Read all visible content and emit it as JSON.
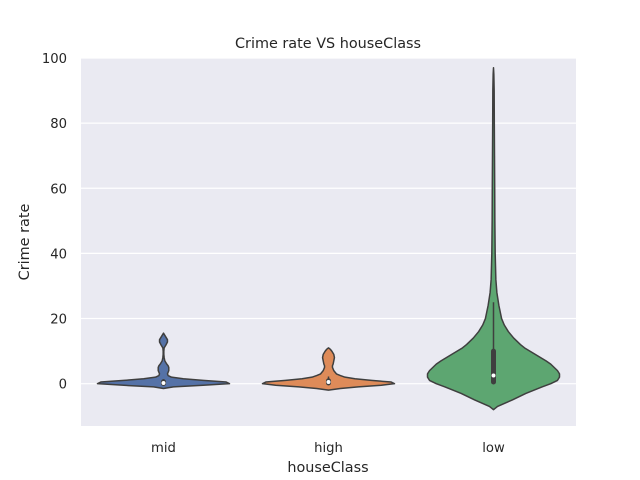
{
  "chart_data": {
    "type": "violin",
    "title": "Crime rate VS houseClass",
    "xlabel": "houseClass",
    "ylabel": "Crime rate",
    "ylim": [
      -13,
      100
    ],
    "yticks": [
      0,
      20,
      40,
      60,
      80,
      100
    ],
    "grid": true,
    "categories": [
      "mid",
      "high",
      "low"
    ],
    "series": [
      {
        "category": "mid",
        "color": "#5572a7",
        "range": [
          -1.5,
          15.5
        ],
        "iqr": [
          0.05,
          0.6
        ],
        "median": 0.2,
        "whiskers": [
          0,
          1.4
        ],
        "profile": [
          [
            -1.5,
            0
          ],
          [
            -1.0,
            0.15
          ],
          [
            -0.5,
            0.6
          ],
          [
            0,
            1.0
          ],
          [
            0.5,
            0.95
          ],
          [
            1.0,
            0.6
          ],
          [
            1.5,
            0.3
          ],
          [
            2.0,
            0.12
          ],
          [
            2.5,
            0.07
          ],
          [
            3.0,
            0.06
          ],
          [
            3.5,
            0.07
          ],
          [
            4.0,
            0.08
          ],
          [
            4.5,
            0.08
          ],
          [
            5.0,
            0.08
          ],
          [
            5.5,
            0.07
          ],
          [
            6.0,
            0.05
          ],
          [
            7.0,
            0.02
          ],
          [
            8.0,
            0.01
          ],
          [
            9.0,
            0.005
          ],
          [
            10.0,
            0.005
          ],
          [
            11.0,
            0.01
          ],
          [
            12.0,
            0.04
          ],
          [
            12.8,
            0.06
          ],
          [
            13.5,
            0.06
          ],
          [
            14.5,
            0.03
          ],
          [
            15.5,
            0
          ]
        ]
      },
      {
        "category": "high",
        "color": "#de8b59",
        "range": [
          -2,
          11
        ],
        "iqr": [
          0.2,
          0.9
        ],
        "median": 0.5,
        "whiskers": [
          0,
          2.2
        ],
        "profile": [
          [
            -2.0,
            0
          ],
          [
            -1.5,
            0.18
          ],
          [
            -1.0,
            0.45
          ],
          [
            -0.5,
            0.8
          ],
          [
            0,
            1.0
          ],
          [
            0.5,
            0.95
          ],
          [
            1.0,
            0.65
          ],
          [
            1.5,
            0.4
          ],
          [
            2.0,
            0.25
          ],
          [
            2.5,
            0.18
          ],
          [
            3.0,
            0.12
          ],
          [
            4.0,
            0.08
          ],
          [
            5.0,
            0.06
          ],
          [
            5.5,
            0.06
          ],
          [
            6.0,
            0.07
          ],
          [
            7.0,
            0.08
          ],
          [
            8.0,
            0.09
          ],
          [
            9.0,
            0.08
          ],
          [
            10.0,
            0.05
          ],
          [
            10.5,
            0.03
          ],
          [
            11.0,
            0
          ]
        ]
      },
      {
        "category": "low",
        "color": "#5da671",
        "range": [
          -8,
          97
        ],
        "iqr": [
          0.5,
          10
        ],
        "median": 2.5,
        "whiskers": [
          0.2,
          25
        ],
        "profile": [
          [
            -8,
            0
          ],
          [
            -7,
            0.06
          ],
          [
            -6,
            0.17
          ],
          [
            -5,
            0.28
          ],
          [
            -4,
            0.38
          ],
          [
            -3,
            0.48
          ],
          [
            -2,
            0.6
          ],
          [
            -1,
            0.72
          ],
          [
            0,
            0.85
          ],
          [
            1,
            0.95
          ],
          [
            2,
            0.98
          ],
          [
            3,
            0.98
          ],
          [
            4,
            0.95
          ],
          [
            5,
            0.9
          ],
          [
            6,
            0.85
          ],
          [
            7,
            0.78
          ],
          [
            8,
            0.7
          ],
          [
            9,
            0.62
          ],
          [
            10,
            0.54
          ],
          [
            11,
            0.46
          ],
          [
            12,
            0.4
          ],
          [
            14,
            0.3
          ],
          [
            16,
            0.22
          ],
          [
            18,
            0.16
          ],
          [
            20,
            0.12
          ],
          [
            24,
            0.08
          ],
          [
            28,
            0.05
          ],
          [
            32,
            0.035
          ],
          [
            40,
            0.025
          ],
          [
            50,
            0.02
          ],
          [
            60,
            0.018
          ],
          [
            70,
            0.015
          ],
          [
            80,
            0.012
          ],
          [
            90,
            0.01
          ],
          [
            95,
            0.005
          ],
          [
            97,
            0
          ]
        ]
      }
    ]
  }
}
